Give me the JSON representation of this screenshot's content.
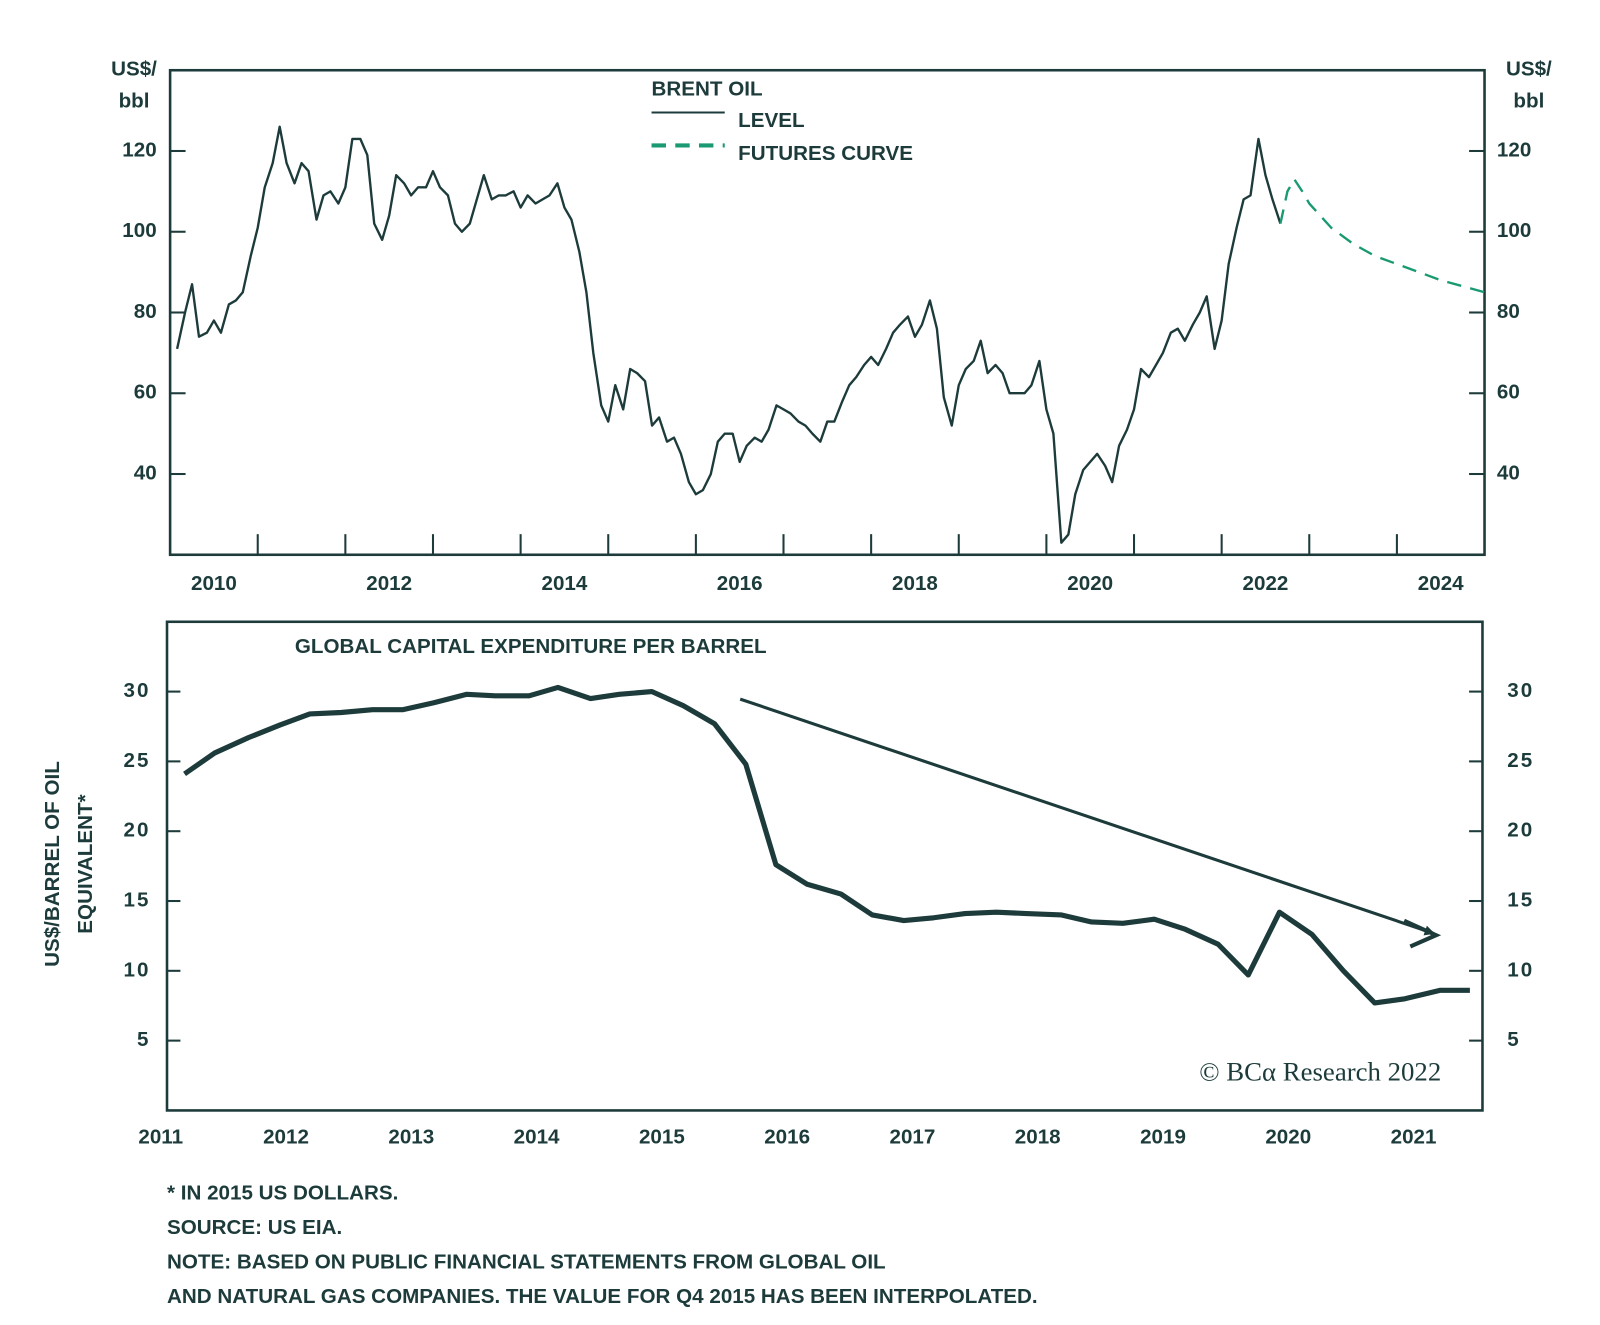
{
  "chart_data": [
    {
      "type": "line",
      "legend_title": "BRENT OIL",
      "ylabel": [
        "US$/",
        "bbl"
      ],
      "y2label": [
        "US$/",
        "bbl"
      ],
      "xlim": [
        2010,
        2025
      ],
      "xticks": [
        {
          "value": 2010.5,
          "label": "2010"
        },
        {
          "value": 2012.5,
          "label": "2012"
        },
        {
          "value": 2014.5,
          "label": "2014"
        },
        {
          "value": 2016.5,
          "label": "2016"
        },
        {
          "value": 2018.5,
          "label": "2018"
        },
        {
          "value": 2020.5,
          "label": "2020"
        },
        {
          "value": 2022.5,
          "label": "2022"
        },
        {
          "value": 2024.5,
          "label": "2024"
        }
      ],
      "xminorticks": [
        2011,
        2012,
        2013,
        2014,
        2015,
        2016,
        2017,
        2018,
        2019,
        2020,
        2021,
        2022,
        2023,
        2024
      ],
      "ylim": [
        20,
        140
      ],
      "yticks": [
        40,
        60,
        80,
        100,
        120
      ],
      "y2lim": [
        20,
        140
      ],
      "y2ticks": [
        40,
        60,
        80,
        100,
        120
      ],
      "series": [
        {
          "name": "LEVEL",
          "color": "#1d3b3b",
          "line_style": "solid",
          "x": [
            2010.08,
            2010.17,
            2010.25,
            2010.33,
            2010.42,
            2010.5,
            2010.58,
            2010.67,
            2010.75,
            2010.83,
            2010.92,
            2011.0,
            2011.08,
            2011.17,
            2011.25,
            2011.33,
            2011.42,
            2011.5,
            2011.58,
            2011.67,
            2011.75,
            2011.83,
            2011.92,
            2012.0,
            2012.08,
            2012.17,
            2012.25,
            2012.33,
            2012.42,
            2012.5,
            2012.58,
            2012.67,
            2012.75,
            2012.83,
            2012.92,
            2013.0,
            2013.08,
            2013.17,
            2013.25,
            2013.33,
            2013.42,
            2013.5,
            2013.58,
            2013.67,
            2013.75,
            2013.83,
            2013.92,
            2014.0,
            2014.08,
            2014.17,
            2014.25,
            2014.33,
            2014.42,
            2014.5,
            2014.58,
            2014.67,
            2014.75,
            2014.83,
            2014.92,
            2015.0,
            2015.08,
            2015.17,
            2015.25,
            2015.33,
            2015.42,
            2015.5,
            2015.58,
            2015.67,
            2015.75,
            2015.83,
            2015.92,
            2016.0,
            2016.08,
            2016.17,
            2016.25,
            2016.33,
            2016.42,
            2016.5,
            2016.58,
            2016.67,
            2016.75,
            2016.83,
            2016.92,
            2017.0,
            2017.08,
            2017.17,
            2017.25,
            2017.33,
            2017.42,
            2017.5,
            2017.58,
            2017.67,
            2017.75,
            2017.83,
            2017.92,
            2018.0,
            2018.08,
            2018.17,
            2018.25,
            2018.33,
            2018.42,
            2018.5,
            2018.58,
            2018.67,
            2018.75,
            2018.83,
            2018.92,
            2019.0,
            2019.08,
            2019.17,
            2019.25,
            2019.33,
            2019.42,
            2019.5,
            2019.58,
            2019.67,
            2019.75,
            2019.83,
            2019.92,
            2020.0,
            2020.08,
            2020.17,
            2020.25,
            2020.33,
            2020.42,
            2020.5,
            2020.58,
            2020.67,
            2020.75,
            2020.83,
            2020.92,
            2021.0,
            2021.08,
            2021.17,
            2021.25,
            2021.33,
            2021.42,
            2021.5,
            2021.58,
            2021.67,
            2021.75,
            2021.83,
            2021.92,
            2022.0,
            2022.08,
            2022.17,
            2022.25,
            2022.33,
            2022.42,
            2022.5,
            2022.58,
            2022.67
          ],
          "values": [
            71,
            80,
            87,
            74,
            75,
            78,
            75,
            82,
            83,
            85,
            94,
            101,
            111,
            117,
            126,
            117,
            112,
            117,
            115,
            103,
            109,
            110,
            107,
            111,
            123,
            123,
            119,
            102,
            98,
            104,
            114,
            112,
            109,
            111,
            111,
            115,
            111,
            109,
            102,
            100,
            102,
            108,
            114,
            108,
            109,
            109,
            110,
            106,
            109,
            107,
            108,
            109,
            112,
            106,
            103,
            95,
            85,
            70,
            57,
            53,
            62,
            56,
            66,
            65,
            63,
            52,
            54,
            48,
            49,
            45,
            38,
            35,
            36,
            40,
            48,
            50,
            50,
            43,
            47,
            49,
            48,
            51,
            57,
            56,
            55,
            53,
            52,
            50,
            48,
            53,
            53,
            58,
            62,
            64,
            67,
            69,
            67,
            71,
            75,
            77,
            79,
            74,
            77,
            83,
            76,
            59,
            52,
            62,
            66,
            68,
            73,
            65,
            67,
            65,
            60,
            60,
            60,
            62,
            68,
            56,
            50,
            23,
            25,
            35,
            41,
            43,
            45,
            42,
            38,
            47,
            51,
            56,
            66,
            64,
            67,
            70,
            75,
            76,
            73,
            77,
            80,
            84,
            71,
            78,
            92,
            101,
            108,
            109,
            123,
            114,
            108,
            102
          ]
        },
        {
          "name": "FUTURES CURVE",
          "color": "#1a9a72",
          "line_style": "dashed",
          "x": [
            2022.67,
            2022.75,
            2022.83,
            2022.92,
            2023.0,
            2023.25,
            2023.5,
            2023.75,
            2024.0,
            2024.25,
            2024.5,
            2024.75,
            2025.0
          ],
          "values": [
            102,
            110,
            113,
            110,
            107,
            101,
            97,
            94,
            92,
            90,
            88,
            86.5,
            85
          ]
        }
      ]
    },
    {
      "type": "line",
      "title": "GLOBAL CAPITAL EXPENDITURE PER BARREL",
      "ylabel": [
        "US$/BARREL OF OIL",
        "EQUIVALENT*"
      ],
      "annotation": "© BCα Research 2022",
      "xlim": [
        2011.05,
        2021.55
      ],
      "xticks": [
        2011,
        2012,
        2013,
        2014,
        2015,
        2016,
        2017,
        2018,
        2019,
        2020,
        2021
      ],
      "ylim": [
        0,
        35
      ],
      "yticks": [
        5,
        10,
        15,
        20,
        25,
        30
      ],
      "y2lim": [
        0,
        35
      ],
      "y2ticks": [
        5,
        10,
        15,
        20,
        25,
        30
      ],
      "series": [
        {
          "color": "#1d3b3b",
          "line_style": "solid",
          "x": [
            2011.19,
            2011.43,
            2011.7,
            2011.95,
            2012.19,
            2012.44,
            2012.69,
            2012.93,
            2013.18,
            2013.44,
            2013.67,
            2013.94,
            2014.17,
            2014.43,
            2014.66,
            2014.92,
            2015.17,
            2015.42,
            2015.67,
            2015.91,
            2016.16,
            2016.43,
            2016.68,
            2016.93,
            2017.17,
            2017.42,
            2017.67,
            2017.91,
            2018.19,
            2018.43,
            2018.68,
            2018.93,
            2019.17,
            2019.44,
            2019.68,
            2019.93,
            2020.19,
            2020.44,
            2020.69,
            2020.93,
            2021.21,
            2021.45
          ],
          "values": [
            24.1,
            25.6,
            26.7,
            27.6,
            28.4,
            28.5,
            28.7,
            28.7,
            29.2,
            29.8,
            29.7,
            29.7,
            30.3,
            29.5,
            29.8,
            30.0,
            29.0,
            27.7,
            24.8,
            17.6,
            16.2,
            15.5,
            14.0,
            13.6,
            13.8,
            14.1,
            14.2,
            14.1,
            14.0,
            13.5,
            13.4,
            13.7,
            13.0,
            11.9,
            9.7,
            14.2,
            12.6,
            10.0,
            7.7,
            8.0,
            8.6,
            8.6
          ]
        }
      ]
    }
  ],
  "notes": [
    "* IN 2015 US DOLLARS.",
    "SOURCE: US EIA.",
    "NOTE: BASED ON PUBLIC FINANCIAL STATEMENTS FROM GLOBAL OIL",
    "AND NATURAL GAS COMPANIES. THE VALUE FOR Q4 2015 HAS BEEN INTERPOLATED."
  ]
}
